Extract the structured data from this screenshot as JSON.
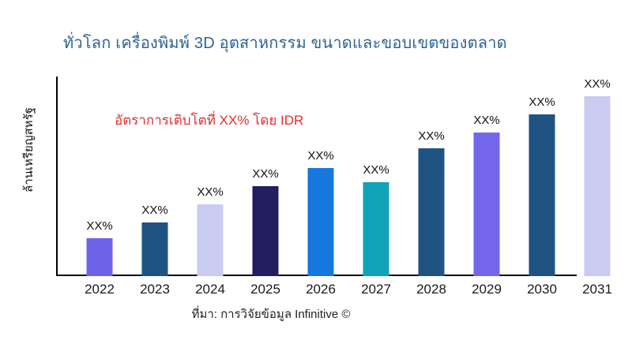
{
  "header": {
    "title": "ทั่วโลก เครื่องพิมพ์ 3D อุตสาหกรรม ขนาดและขอบเขตของตลาด",
    "title_color": "#2E6496"
  },
  "chart_data": {
    "type": "bar",
    "title": "ทั่วโลก เครื่องพิมพ์ 3D อุตสาหกรรม ขนาดและขอบเขตของตลาด",
    "xlabel": "",
    "ylabel": "ล้านเหรียญสหรัฐ",
    "categories": [
      "2022",
      "2023",
      "2024",
      "2025",
      "2026",
      "2027",
      "2028",
      "2029",
      "2030",
      "2031"
    ],
    "values": [
      19,
      27,
      36,
      45,
      54,
      47,
      64,
      72,
      81,
      90
    ],
    "note": "numeric values are masked in the source chart; printed data labels all read XX%; values here are bar heights as percent of y-axis range",
    "bar_value_labels": [
      "XX%",
      "XX%",
      "XX%",
      "XX%",
      "XX%",
      "XX%",
      "XX%",
      "XX%",
      "XX%",
      "XX%"
    ],
    "bar_colors": [
      "#6D63E9",
      "#1F5382",
      "#C9CCF0",
      "#231E60",
      "#1678DE",
      "#10A3B8",
      "#1F5382",
      "#7466EB",
      "#1F5382",
      "#C9CCF0"
    ],
    "ylim": [
      0,
      100
    ],
    "grid": false,
    "legend": false,
    "axis_color": "#000000",
    "annotation": {
      "text": "อัตราการเติบโตที่ XX% โดย IDR",
      "color": "#E03131"
    },
    "source": "ที่มา: การวิจัยข้อมูล Infinitive ©"
  }
}
